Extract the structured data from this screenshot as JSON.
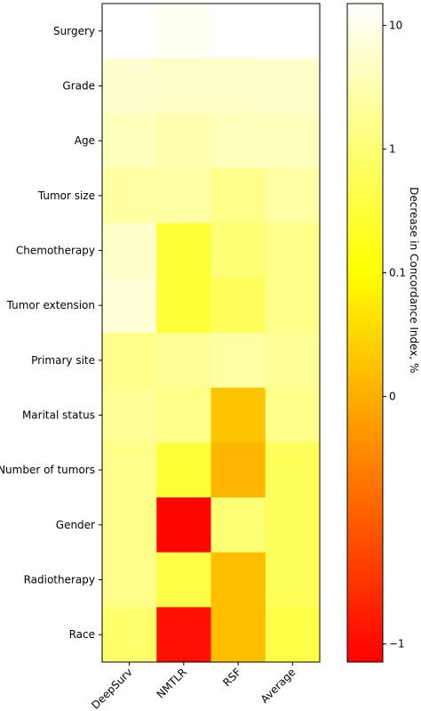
{
  "chart_data": {
    "type": "heatmap",
    "rows": [
      "Surgery",
      "Grade",
      "Age",
      "Tumor size",
      "Chemotherapy",
      "Tumor extension",
      "Primary site",
      "Marital status",
      "Number of tumors",
      "Gender",
      "Radiotherapy",
      "Race"
    ],
    "columns": [
      "DeepSurv",
      "NMTLR",
      "RSF",
      "Average"
    ],
    "values": [
      [
        15,
        12,
        15,
        15
      ],
      [
        6,
        5,
        5,
        5.5
      ],
      [
        4,
        3,
        4,
        4
      ],
      [
        2.5,
        2.5,
        1.5,
        2.5
      ],
      [
        5,
        0.3,
        1,
        1.5
      ],
      [
        7,
        0.3,
        0.6,
        1.5
      ],
      [
        1.5,
        2,
        2.5,
        2
      ],
      [
        2,
        1.5,
        0.03,
        1.5
      ],
      [
        1.5,
        0.3,
        0.01,
        0.6
      ],
      [
        1.5,
        -1.2,
        1,
        0.6
      ],
      [
        1.5,
        0.4,
        0.02,
        0.6
      ],
      [
        0.8,
        -0.9,
        0.02,
        0.4
      ]
    ],
    "colorbar": {
      "label": "Decrease in Concordance Index, %",
      "scale": "symlog",
      "linthresh": 0.1,
      "range": [
        -1.4,
        15
      ],
      "colormap": "autumn",
      "ticks": [
        {
          "value": 10,
          "label": "10"
        },
        {
          "value": 1,
          "label": "1"
        },
        {
          "value": 0.1,
          "label": "0.1"
        },
        {
          "value": 0,
          "label": "0"
        },
        {
          "value": -1,
          "label": "−1"
        }
      ]
    }
  }
}
